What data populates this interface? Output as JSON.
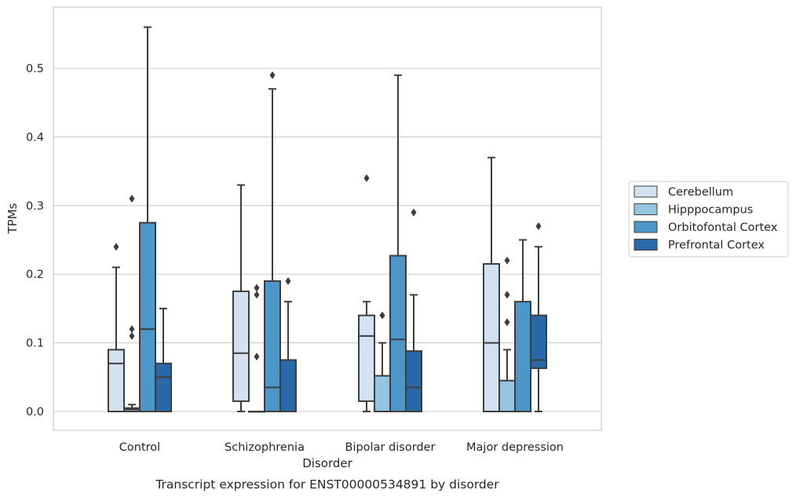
{
  "chart_data": {
    "type": "boxplot",
    "title": "",
    "caption": "Transcript expression for ENST00000534891 by disorder",
    "xlabel": "Disorder",
    "ylabel": "TPMs",
    "ylim": [
      -0.027,
      0.59
    ],
    "yticks": [
      0.0,
      0.1,
      0.2,
      0.3,
      0.4,
      0.5
    ],
    "ytick_labels": [
      "0.0",
      "0.1",
      "0.2",
      "0.3",
      "0.4",
      "0.5"
    ],
    "grid": "horizontal",
    "legend_position": "right",
    "categories": [
      "Control",
      "Schizophrenia",
      "Bipolar disorder",
      "Major depression"
    ],
    "series": [
      {
        "name": "Cerebellum",
        "color": "#d2e2f1",
        "boxes": [
          {
            "whislo": 0.0,
            "q1": 0.0,
            "med": 0.07,
            "q3": 0.09,
            "whishi": 0.21,
            "fliers": [
              0.24
            ]
          },
          {
            "whislo": 0.0,
            "q1": 0.015,
            "med": 0.085,
            "q3": 0.175,
            "whishi": 0.33,
            "fliers": []
          },
          {
            "whislo": 0.0,
            "q1": 0.015,
            "med": 0.11,
            "q3": 0.14,
            "whishi": 0.16,
            "fliers": [
              0.34
            ]
          },
          {
            "whislo": 0.0,
            "q1": 0.0,
            "med": 0.1,
            "q3": 0.215,
            "whishi": 0.37,
            "fliers": []
          }
        ]
      },
      {
        "name": "Hipppocampus",
        "color": "#94c4df",
        "boxes": [
          {
            "whislo": 0.0,
            "q1": 0.0,
            "med": 0.003,
            "q3": 0.005,
            "whishi": 0.01,
            "fliers": [
              0.11,
              0.12,
              0.31
            ]
          },
          {
            "whislo": 0.0,
            "q1": 0.0,
            "med": 0.0,
            "q3": 0.0,
            "whishi": 0.0,
            "fliers": [
              0.08,
              0.17,
              0.18
            ]
          },
          {
            "whislo": 0.0,
            "q1": 0.0,
            "med": 0.0,
            "q3": 0.052,
            "whishi": 0.1,
            "fliers": [
              0.14
            ]
          },
          {
            "whislo": 0.0,
            "q1": 0.0,
            "med": 0.0,
            "q3": 0.045,
            "whishi": 0.09,
            "fliers": [
              0.13,
              0.17,
              0.22
            ]
          }
        ]
      },
      {
        "name": "Orbitofontal Cortex",
        "color": "#4b97c9",
        "boxes": [
          {
            "whislo": 0.0,
            "q1": 0.0,
            "med": 0.12,
            "q3": 0.275,
            "whishi": 0.56,
            "fliers": []
          },
          {
            "whislo": 0.0,
            "q1": 0.0,
            "med": 0.035,
            "q3": 0.19,
            "whishi": 0.47,
            "fliers": [
              0.49
            ]
          },
          {
            "whislo": 0.0,
            "q1": 0.0,
            "med": 0.105,
            "q3": 0.227,
            "whishi": 0.49,
            "fliers": []
          },
          {
            "whislo": 0.0,
            "q1": 0.0,
            "med": 0.0,
            "q3": 0.16,
            "whishi": 0.25,
            "fliers": []
          }
        ]
      },
      {
        "name": "Prefrontal Cortex",
        "color": "#2a69a9",
        "boxes": [
          {
            "whislo": 0.0,
            "q1": 0.0,
            "med": 0.05,
            "q3": 0.07,
            "whishi": 0.15,
            "fliers": []
          },
          {
            "whislo": 0.0,
            "q1": 0.0,
            "med": 0.0,
            "q3": 0.075,
            "whishi": 0.16,
            "fliers": [
              0.19
            ]
          },
          {
            "whislo": 0.0,
            "q1": 0.0,
            "med": 0.035,
            "q3": 0.088,
            "whishi": 0.17,
            "fliers": [
              0.29
            ]
          },
          {
            "whislo": 0.0,
            "q1": 0.063,
            "med": 0.075,
            "q3": 0.14,
            "whishi": 0.24,
            "fliers": [
              0.27
            ]
          }
        ]
      }
    ]
  }
}
